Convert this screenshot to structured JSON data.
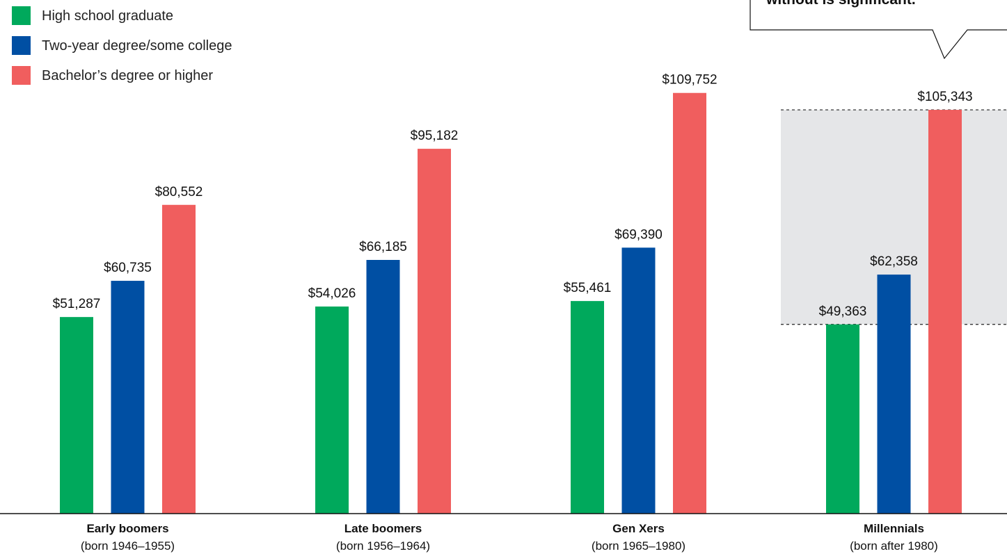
{
  "chart_data": {
    "type": "bar",
    "categories": [
      "Early boomers",
      "Late boomers",
      "Gen Xers",
      "Millennials"
    ],
    "category_sublabels": [
      "(born 1946–1955)",
      "(born 1956–1964)",
      "(born 1965–1980)",
      "(born after 1980)"
    ],
    "series": [
      {
        "name": "High school graduate",
        "color": "#00a95c",
        "values": [
          51287,
          54026,
          55461,
          49363
        ],
        "labels": [
          "$51,287",
          "$54,026",
          "$55,461",
          "$49,363"
        ]
      },
      {
        "name": "Two-year degree/some college",
        "color": "#004fa3",
        "values": [
          60735,
          66185,
          69390,
          62358
        ],
        "labels": [
          "$60,735",
          "$66,185",
          "$69,390",
          "$62,358"
        ]
      },
      {
        "name": "Bachelor’s degree or higher",
        "color": "#f05e5e",
        "values": [
          80552,
          95182,
          109752,
          105343
        ],
        "labels": [
          "$80,552",
          "$95,182",
          "$109,752",
          "$105,343"
        ]
      }
    ],
    "ylim": [
      0,
      134000
    ],
    "grid": false,
    "legend_position": "top-left",
    "highlight": {
      "category": "Millennials",
      "from_value": 49363,
      "to_value": 105343,
      "color": "#e5e6e8"
    },
    "callout_text": "without is significant."
  }
}
